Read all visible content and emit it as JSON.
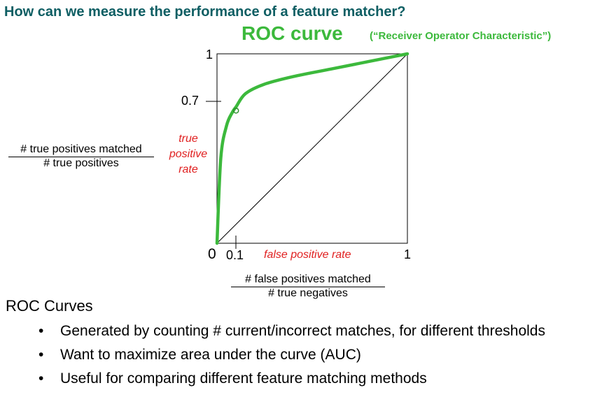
{
  "slide_title": "How can we measure the performance of a feature matcher?",
  "roc": {
    "title": "ROC curve",
    "subtitle": "(“Receiver Operator Characteristic”)",
    "tpr_label_lines": [
      "true",
      "positive",
      "rate"
    ],
    "fpr_label": "false positive rate",
    "tpr_fraction": {
      "numerator": "# true positives matched",
      "denominator": "# true positives"
    },
    "fpr_fraction": {
      "numerator": "# false positives matched",
      "denominator": "# true negatives"
    },
    "y_tick_top": "1",
    "y_tick_mark": "0.7",
    "x_tick_mark": "0.1",
    "x_tick_right": "1",
    "origin": "0"
  },
  "chart_data": {
    "type": "line",
    "xlabel": "false positive rate",
    "ylabel": "true positive rate",
    "xlim": [
      0,
      1
    ],
    "ylim": [
      0,
      1
    ],
    "grid": false,
    "series": [
      {
        "color": "#3cb93c",
        "x": [
          0,
          0.02,
          0.05,
          0.08,
          0.1,
          0.15,
          0.25,
          0.4,
          0.6,
          0.8,
          1.0
        ],
        "y": [
          0,
          0.45,
          0.62,
          0.69,
          0.72,
          0.79,
          0.84,
          0.88,
          0.92,
          0.96,
          1.0
        ]
      },
      {
        "color": "#000000",
        "x": [
          0,
          1
        ],
        "y": [
          0,
          1
        ]
      }
    ],
    "highlight_point": {
      "x": 0.1,
      "y": 0.7
    },
    "axis_ticks": {
      "x": [
        "0",
        "0.1",
        "1"
      ],
      "y": [
        "0",
        "0.7",
        "1"
      ]
    }
  },
  "section_heading": "ROC Curves",
  "bullets": [
    "Generated by counting # current/incorrect matches, for different thresholds",
    "Want to maximize area under the curve (AUC)",
    "Useful for comparing different feature matching methods"
  ],
  "bullet_glyph": "•"
}
